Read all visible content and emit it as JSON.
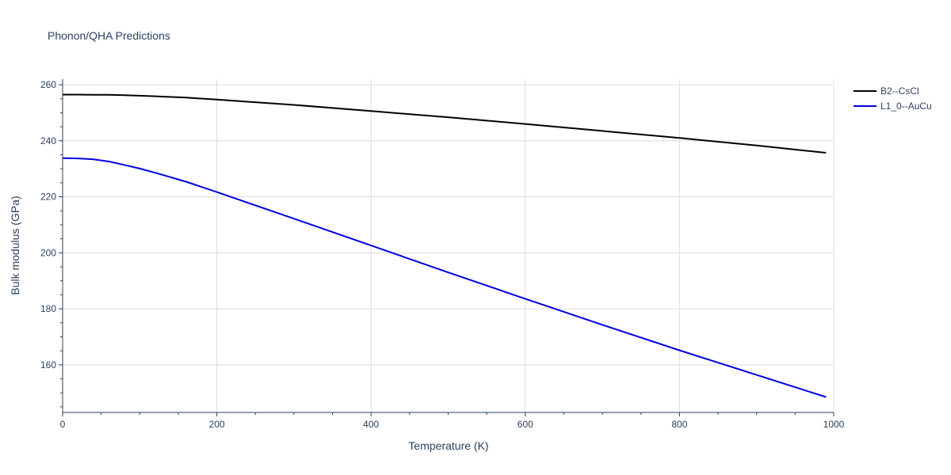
{
  "chart_data": {
    "type": "line",
    "title": "Phonon/QHA Predictions",
    "xlabel": "Temperature (K)",
    "ylabel": "Bulk modulus (GPa)",
    "xlim": [
      0,
      1000
    ],
    "ylim": [
      143,
      262
    ],
    "x_ticks": [
      0,
      200,
      400,
      600,
      800,
      1000
    ],
    "y_ticks": [
      160,
      180,
      200,
      220,
      240,
      260
    ],
    "grid": true,
    "legend_position": "top-right",
    "series": [
      {
        "name": "B2--CsCl",
        "color": "#000000",
        "x": [
          0,
          20,
          40,
          60,
          80,
          100,
          120,
          160,
          200,
          300,
          400,
          500,
          600,
          700,
          800,
          900,
          990
        ],
        "y": [
          256.5,
          256.5,
          256.4,
          256.4,
          256.3,
          256.1,
          255.9,
          255.4,
          254.7,
          252.8,
          250.6,
          248.4,
          246.0,
          243.5,
          241.0,
          238.3,
          235.7
        ]
      },
      {
        "name": "L1_0--AuCu",
        "color": "#0000dd",
        "x": [
          0,
          20,
          40,
          60,
          80,
          100,
          120,
          160,
          200,
          300,
          400,
          500,
          600,
          700,
          800,
          900,
          990
        ],
        "y": [
          233.8,
          233.7,
          233.4,
          232.6,
          231.4,
          230.1,
          228.6,
          225.4,
          221.7,
          212.2,
          202.6,
          193.0,
          183.6,
          174.3,
          165.2,
          156.4,
          148.5
        ]
      }
    ]
  }
}
